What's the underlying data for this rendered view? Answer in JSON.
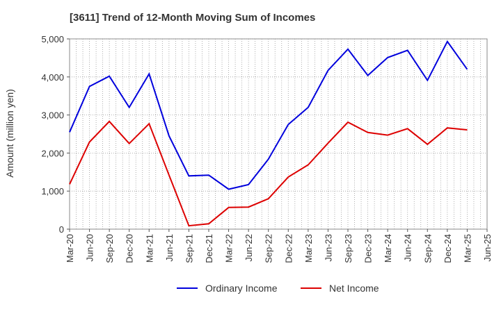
{
  "chart_data": {
    "type": "line",
    "title": "[3611]  Trend of 12-Month Moving Sum of Incomes",
    "xlabel": "",
    "ylabel": "Amount (million yen)",
    "categories": [
      "Mar-20",
      "Jun-20",
      "Sep-20",
      "Dec-20",
      "Mar-21",
      "Jun-21",
      "Sep-21",
      "Dec-21",
      "Mar-22",
      "Jun-22",
      "Sep-22",
      "Dec-22",
      "Mar-23",
      "Jun-23",
      "Sep-23",
      "Dec-23",
      "Mar-24",
      "Jun-24",
      "Sep-24",
      "Dec-24",
      "Mar-25",
      "Jun-25"
    ],
    "y_ticks": [
      0,
      1000,
      2000,
      3000,
      4000,
      5000
    ],
    "y_tick_labels": [
      "0",
      "1,000",
      "2,000",
      "3,000",
      "4,000",
      "5,000"
    ],
    "ylim": [
      0,
      5000
    ],
    "grid": true,
    "legend_position": "bottom-center",
    "series": [
      {
        "name": "Ordinary Income",
        "color": "#0000dd",
        "values": [
          2550,
          3750,
          4020,
          3200,
          4080,
          2450,
          1400,
          1420,
          1050,
          1170,
          1840,
          2750,
          3200,
          4170,
          4730,
          4040,
          4510,
          4700,
          3910,
          4930,
          4200,
          null
        ]
      },
      {
        "name": "Net Income",
        "color": "#dd0000",
        "values": [
          1180,
          2290,
          2830,
          2250,
          2770,
          1420,
          90,
          140,
          570,
          580,
          800,
          1370,
          1690,
          2260,
          2810,
          2540,
          2470,
          2640,
          2230,
          2660,
          2610,
          null
        ]
      }
    ]
  }
}
